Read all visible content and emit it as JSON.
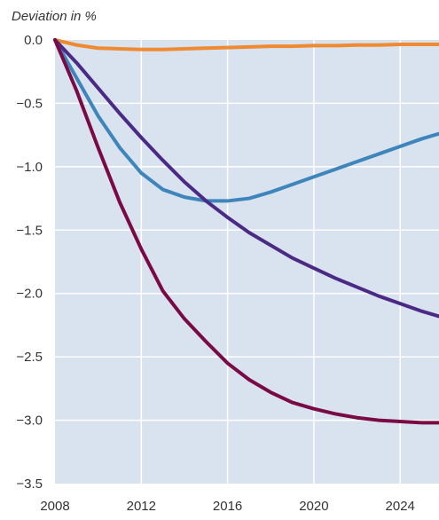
{
  "chart_data": {
    "type": "line",
    "title": "",
    "ylabel": "Deviation in %",
    "xlabel": "",
    "xlim": [
      2008,
      2025.8
    ],
    "ylim": [
      -3.5,
      0.0
    ],
    "x_ticks": [
      2008,
      2012,
      2016,
      2020,
      2024
    ],
    "y_ticks": [
      0.0,
      -0.5,
      -1.0,
      -1.5,
      -2.0,
      -2.5,
      -3.0,
      -3.5
    ],
    "x_tick_labels": [
      "2008",
      "2012",
      "2016",
      "2020",
      "2024"
    ],
    "y_tick_labels": [
      "0.0",
      "−0.5",
      "−1.0",
      "−1.5",
      "−2.0",
      "−2.5",
      "−3.0",
      "−3.5"
    ],
    "grid": true,
    "legend": "none",
    "colors": {
      "plot_background": "#d9e2ef",
      "grid": "#ffffff"
    },
    "series": [
      {
        "color": "#f08a30",
        "x": [
          2008,
          2009,
          2010,
          2011,
          2012,
          2013,
          2014,
          2015,
          2016,
          2017,
          2018,
          2019,
          2020,
          2021,
          2022,
          2023,
          2024,
          2025,
          2025.8
        ],
        "values": [
          0.0,
          -0.04,
          -0.065,
          -0.07,
          -0.075,
          -0.075,
          -0.07,
          -0.065,
          -0.06,
          -0.055,
          -0.05,
          -0.05,
          -0.045,
          -0.045,
          -0.04,
          -0.04,
          -0.035,
          -0.035,
          -0.035
        ]
      },
      {
        "color": "#3d85bb",
        "x": [
          2008,
          2009,
          2010,
          2011,
          2012,
          2013,
          2014,
          2015,
          2016,
          2017,
          2018,
          2019,
          2020,
          2021,
          2022,
          2023,
          2024,
          2025,
          2025.8
        ],
        "values": [
          0.0,
          -0.3,
          -0.6,
          -0.85,
          -1.05,
          -1.18,
          -1.24,
          -1.27,
          -1.27,
          -1.25,
          -1.2,
          -1.14,
          -1.08,
          -1.02,
          -0.96,
          -0.9,
          -0.84,
          -0.78,
          -0.74
        ]
      },
      {
        "color": "#4b2a86",
        "x": [
          2008,
          2009,
          2010,
          2011,
          2012,
          2013,
          2014,
          2015,
          2016,
          2017,
          2018,
          2019,
          2020,
          2021,
          2022,
          2023,
          2024,
          2025,
          2025.8
        ],
        "values": [
          0.0,
          -0.18,
          -0.38,
          -0.58,
          -0.77,
          -0.95,
          -1.12,
          -1.27,
          -1.4,
          -1.52,
          -1.62,
          -1.72,
          -1.8,
          -1.88,
          -1.95,
          -2.02,
          -2.08,
          -2.14,
          -2.18
        ]
      },
      {
        "color": "#7a0a45",
        "x": [
          2008,
          2009,
          2010,
          2011,
          2012,
          2013,
          2014,
          2015,
          2016,
          2017,
          2018,
          2019,
          2020,
          2021,
          2022,
          2023,
          2024,
          2025,
          2025.8
        ],
        "values": [
          0.0,
          -0.4,
          -0.85,
          -1.28,
          -1.65,
          -1.98,
          -2.2,
          -2.38,
          -2.55,
          -2.68,
          -2.78,
          -2.86,
          -2.91,
          -2.95,
          -2.98,
          -3.0,
          -3.01,
          -3.02,
          -3.02
        ]
      }
    ]
  }
}
